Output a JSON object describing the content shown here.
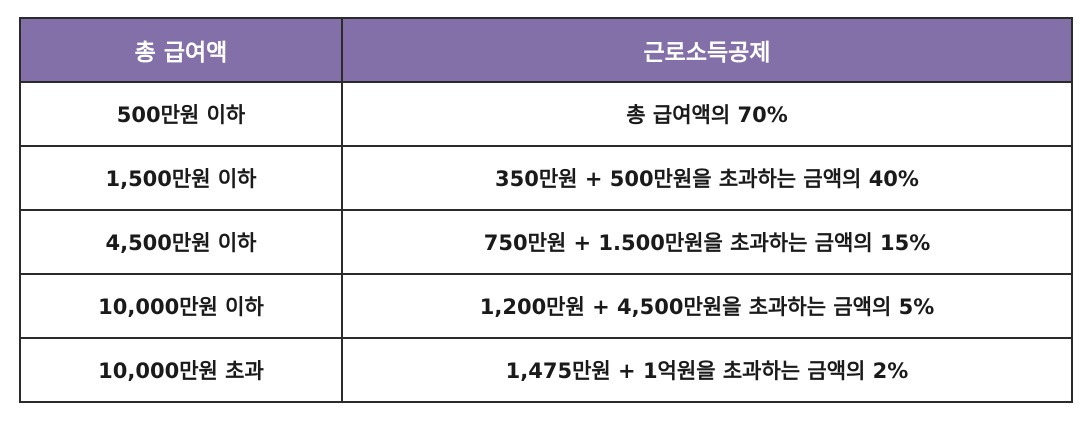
{
  "table": {
    "headers": [
      "총 급여액",
      "근로소득공제"
    ],
    "rows": [
      [
        "500만원 이하",
        "총 급여액의 70%"
      ],
      [
        "1,500만원 이하",
        "350만원 + 500만원을 초과하는 금액의 40%"
      ],
      [
        "4,500만원 이하",
        "750만원 + 1.500만원을 초과하는 금액의 15%"
      ],
      [
        "10,000만원 이하",
        "1,200만원 + 4,500만원을 초과하는 금액의 5%"
      ],
      [
        "10,000만원 초과",
        "1,475만원 + 1억원을 초과하는 금액의 2%"
      ]
    ]
  },
  "colors": {
    "header_background": "#8470a8",
    "header_text": "#ffffff",
    "border": "#2b2b2b"
  }
}
